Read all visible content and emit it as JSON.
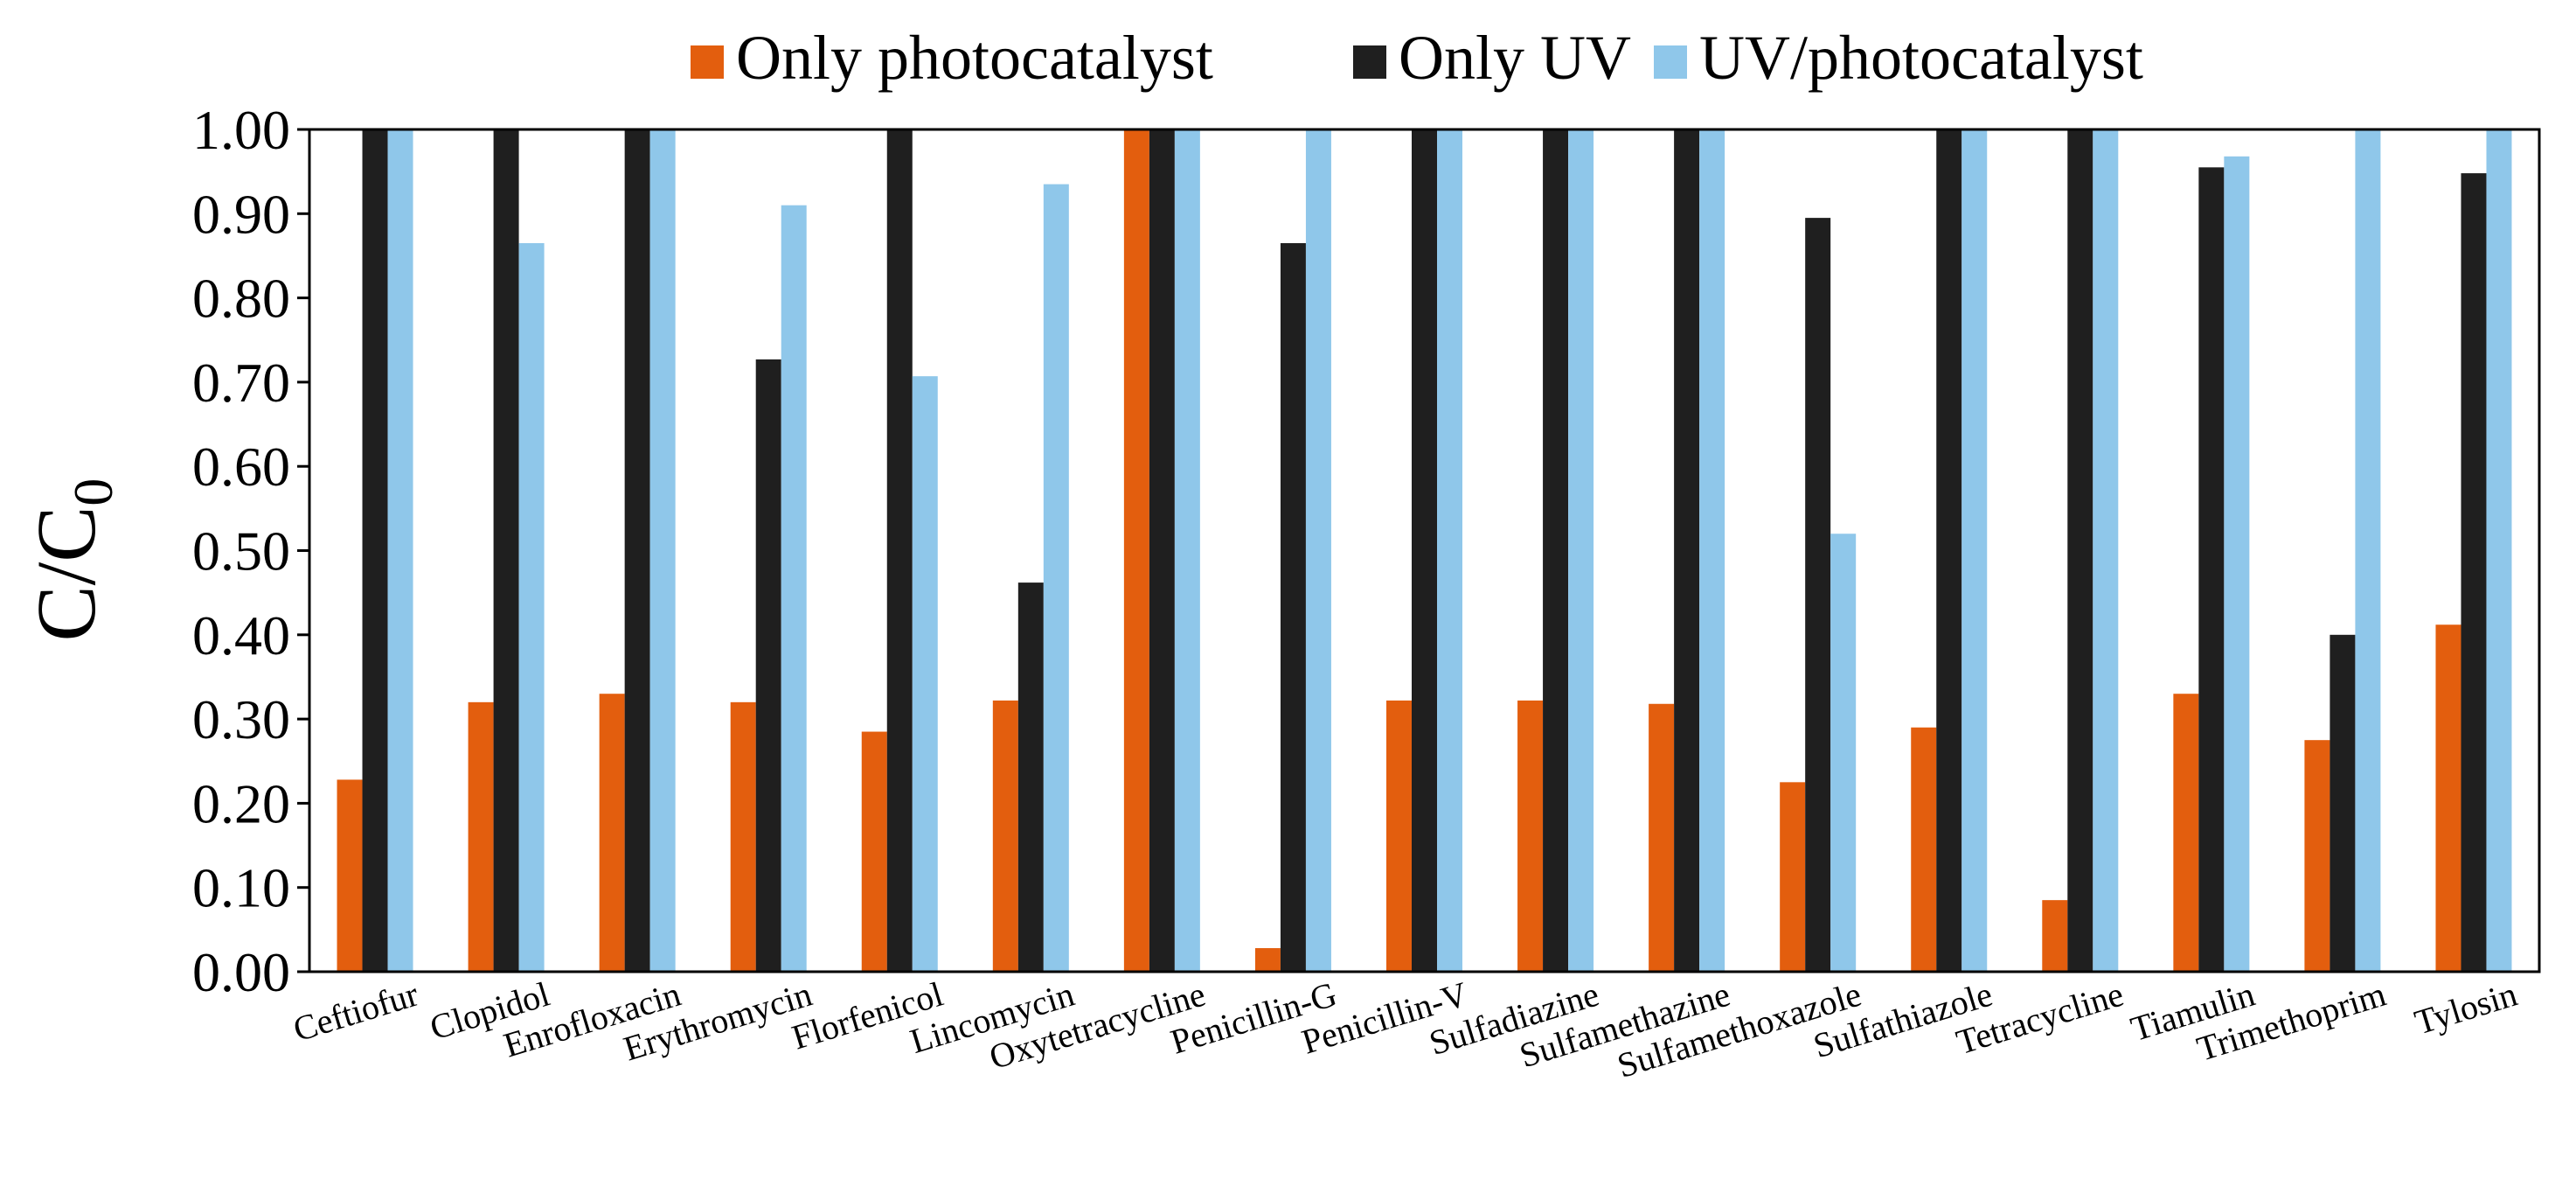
{
  "chart_data": {
    "type": "bar",
    "title": "",
    "xlabel": "",
    "ylabel": "C/C",
    "ylabel_subscript": "0",
    "ylim": [
      0,
      1
    ],
    "yticks": [
      "0.00",
      "0.10",
      "0.20",
      "0.30",
      "0.40",
      "0.50",
      "0.60",
      "0.70",
      "0.80",
      "0.90",
      "1.00"
    ],
    "legend_position": "top-center",
    "grid": false,
    "categories": [
      "Ceftiofur",
      "Clopidol",
      "Enrofloxacin",
      "Erythromycin",
      "Florfenicol",
      "Lincomycin",
      "Oxytetracycline",
      "Penicillin-G",
      "Penicillin-V",
      "Sulfadiazine",
      "Sulfamethazine",
      "Sulfamethoxazole",
      "Sulfathiazole",
      "Tetracycline",
      "Tiamulin",
      "Trimethoprim",
      "Tylosin"
    ],
    "series": [
      {
        "name": "Only photocatalyst",
        "color": "#E35E0E",
        "values": [
          0.228,
          0.32,
          0.33,
          0.32,
          0.285,
          0.322,
          1.0,
          0.028,
          0.322,
          0.322,
          0.318,
          0.225,
          0.29,
          0.085,
          0.33,
          0.275,
          0.412
        ]
      },
      {
        "name": "Only UV",
        "color": "#1F1F1F",
        "values": [
          1.0,
          1.0,
          1.0,
          0.727,
          1.0,
          0.462,
          1.0,
          0.865,
          1.0,
          1.0,
          1.0,
          0.895,
          1.0,
          1.0,
          0.955,
          0.4,
          0.948
        ]
      },
      {
        "name": "UV/photocatalyst",
        "color": "#8FC7EA",
        "values": [
          1.0,
          0.865,
          1.0,
          0.91,
          0.707,
          0.935,
          1.0,
          1.0,
          1.0,
          1.0,
          1.0,
          0.52,
          1.0,
          1.0,
          0.968,
          1.0,
          1.0
        ]
      }
    ]
  }
}
